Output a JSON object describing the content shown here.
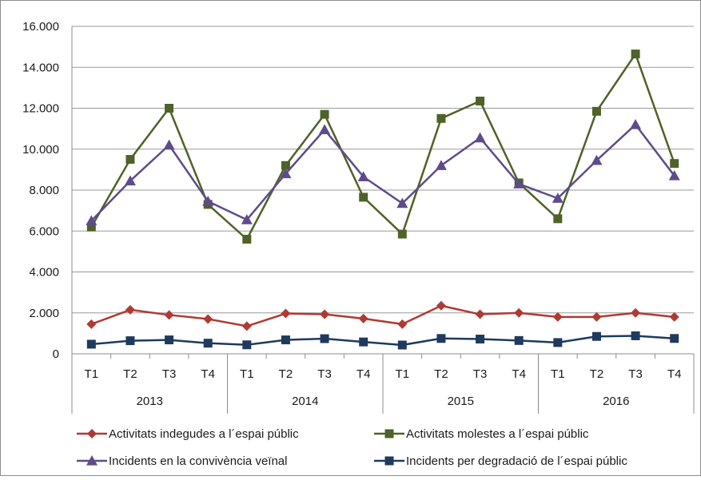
{
  "chart_data": {
    "type": "line",
    "title": "",
    "xlabel": "",
    "ylabel": "",
    "ylim": [
      0,
      16000
    ],
    "yticks": [
      0,
      2000,
      4000,
      6000,
      8000,
      10000,
      12000,
      14000,
      16000
    ],
    "ytick_labels": [
      "0",
      "2.000",
      "4.000",
      "6.000",
      "8.000",
      "10.000",
      "12.000",
      "14.000",
      "16.000"
    ],
    "grid": "horizontal",
    "legend_position": "bottom",
    "categories": [
      "T1",
      "T2",
      "T3",
      "T4",
      "T1",
      "T2",
      "T3",
      "T4",
      "T1",
      "T2",
      "T3",
      "T4",
      "T1",
      "T2",
      "T3",
      "T4"
    ],
    "groups": [
      {
        "label": "2013",
        "count": 4
      },
      {
        "label": "2014",
        "count": 4
      },
      {
        "label": "2015",
        "count": 4
      },
      {
        "label": "2016",
        "count": 4
      }
    ],
    "series": [
      {
        "name": "Activitats indegudes a l´espai públic",
        "color": "#b03a32",
        "marker": "diamond",
        "values": [
          1450,
          2150,
          1900,
          1700,
          1350,
          1970,
          1930,
          1720,
          1450,
          2350,
          1930,
          2000,
          1800,
          1800,
          2000,
          1800
        ]
      },
      {
        "name": "Activitats molestes a l´espai públic",
        "color": "#4f6228",
        "marker": "square",
        "values": [
          6200,
          9500,
          12000,
          7300,
          5600,
          9200,
          11700,
          7650,
          5850,
          11500,
          12350,
          8350,
          6600,
          11850,
          14650,
          9300
        ]
      },
      {
        "name": "Incidents en la convivència veïnal",
        "color": "#5f4b8b",
        "marker": "triangle",
        "values": [
          6500,
          8450,
          10200,
          7450,
          6550,
          8800,
          10950,
          8650,
          7350,
          9200,
          10550,
          8300,
          7600,
          9450,
          11200,
          8700
        ]
      },
      {
        "name": "Incidents per degradació de l´espai públic",
        "color": "#1f3a5f",
        "marker": "square",
        "values": [
          470,
          640,
          680,
          520,
          440,
          680,
          740,
          580,
          430,
          750,
          720,
          650,
          550,
          850,
          880,
          750
        ]
      }
    ]
  }
}
